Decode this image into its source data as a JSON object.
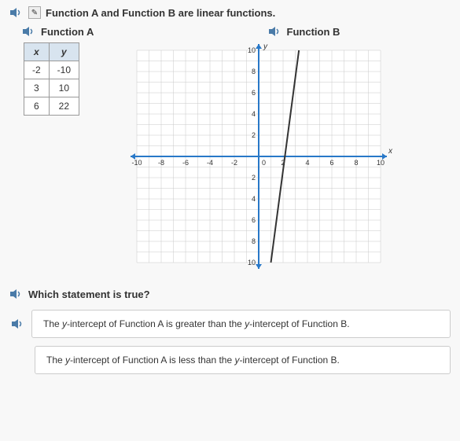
{
  "header": {
    "text": "Function A and Function B are linear functions."
  },
  "functionA": {
    "label": "Function A",
    "table": {
      "headers": [
        "x",
        "y"
      ],
      "rows": [
        [
          "-2",
          "-10"
        ],
        [
          "3",
          "10"
        ],
        [
          "6",
          "22"
        ]
      ]
    }
  },
  "functionB": {
    "label": "Function B",
    "graph": {
      "xlim": [
        -10,
        10
      ],
      "ylim": [
        -10,
        10
      ],
      "xtick_step": 2,
      "ytick_step": 2,
      "tick_labels_x": [
        -10,
        -8,
        -6,
        -4,
        -2,
        0,
        2,
        4,
        6,
        8,
        10
      ],
      "tick_labels_y": [
        -10,
        -8,
        -6,
        -4,
        -2,
        0,
        2,
        4,
        6,
        8,
        10
      ],
      "grid_color": "#c8c8c8",
      "axis_color": "#2878c8",
      "line_color": "#333333",
      "background_color": "#ffffff",
      "line_points": [
        [
          1,
          -10
        ],
        [
          3.3,
          10
        ]
      ],
      "x_axis_label": "x",
      "y_axis_label": "y"
    }
  },
  "question": {
    "text": "Which statement is true?"
  },
  "answers": {
    "option1_parts": [
      "The ",
      "y",
      "-intercept of Function A is greater than the ",
      "y",
      "-intercept of Function B."
    ],
    "option2_parts": [
      "The ",
      "y",
      "-intercept of Function A is less than the ",
      "y",
      "-intercept of Function B."
    ]
  }
}
